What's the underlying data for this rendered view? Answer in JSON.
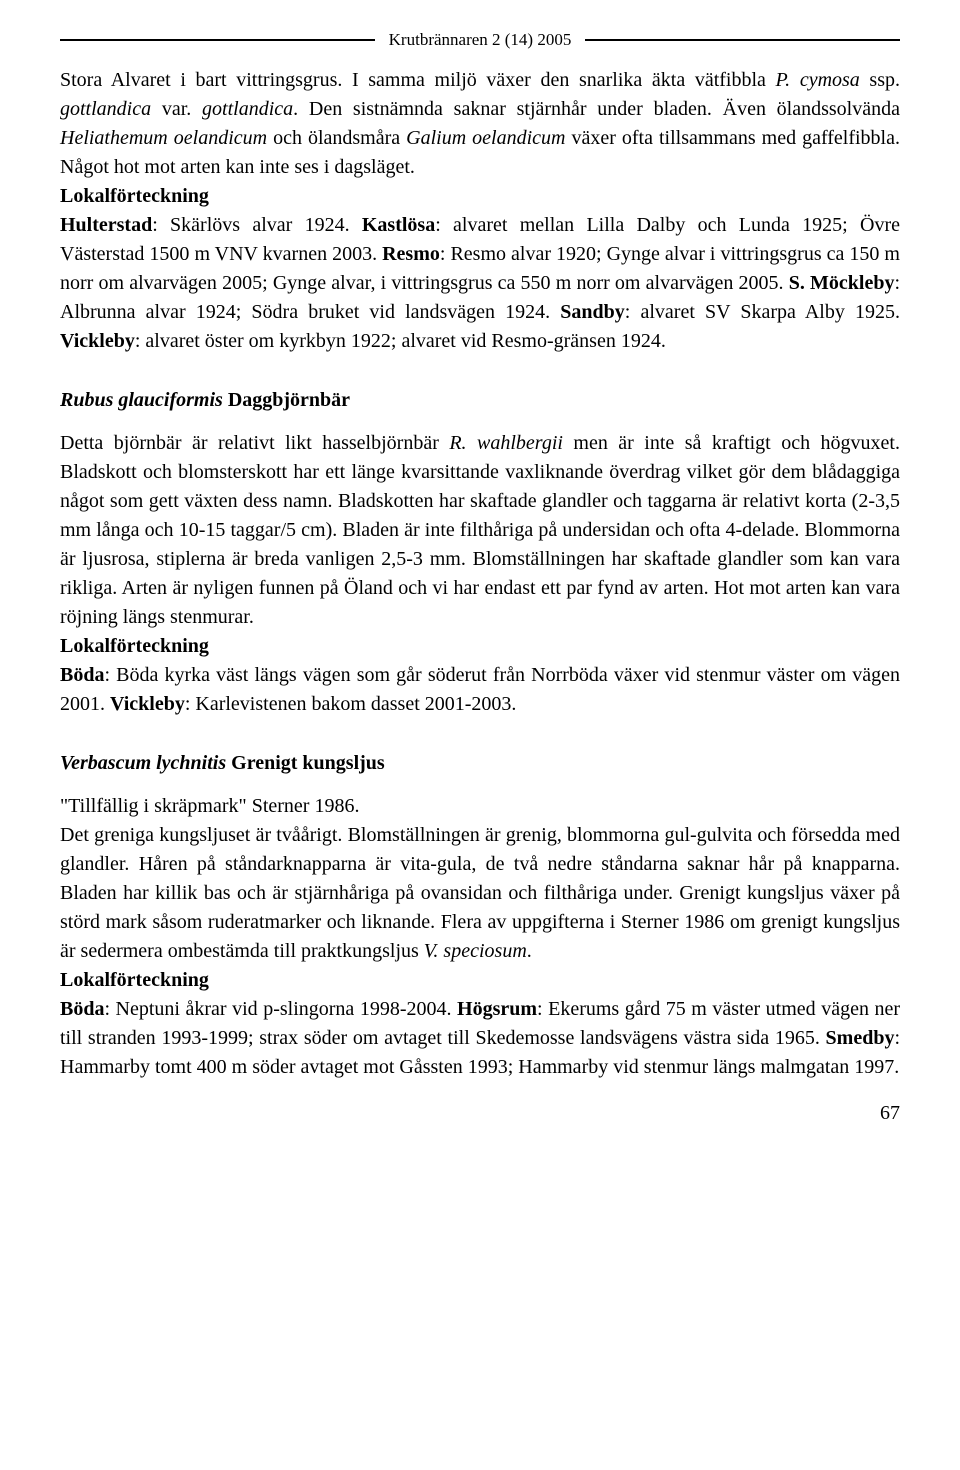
{
  "header": {
    "title": "Krutbrännaren 2 (14) 2005"
  },
  "section1": {
    "p1a": "Stora Alvaret i bart vittringsgrus. I samma miljö växer den snarlika äkta vätfibbla ",
    "p1b": "P. cymosa",
    "p1c": " ssp. ",
    "p1d": "gottlandica",
    "p1e": " var. ",
    "p1f": "gottlandica",
    "p1g": ". Den sistnämnda saknar stjärnhår under bladen. Även ölandssolvända ",
    "p1h": "Heliathemum oelandicum",
    "p1i": " och ölandsmåra ",
    "p1j": "Galium oelandicum",
    "p1k": " växer ofta tillsammans med gaffelfibbla. Något hot mot arten kan inte ses i dagsläget.",
    "lokal": "Lokalförteckning",
    "p2a": "Hulterstad",
    "p2b": ": Skärlövs alvar 1924. ",
    "p2c": "Kastlösa",
    "p2d": ": alvaret mellan Lilla Dalby och Lunda 1925; Övre Västerstad 1500 m VNV kvarnen 2003. ",
    "p2e": "Resmo",
    "p2f": ": Resmo alvar 1920; Gynge alvar i vittringsgrus ca 150 m norr om alvarvägen 2005; Gynge alvar, i vittringsgrus ca 550 m norr om alvarvägen 2005. ",
    "p2g": "S. Möckleby",
    "p2h": ": Albrunna alvar 1924; Södra bruket vid landsvägen 1924. ",
    "p2i": "Sandby",
    "p2j": ": alvaret SV Skarpa Alby 1925. ",
    "p2k": "Vickleby",
    "p2l": ": alvaret öster om kyrkbyn 1922; alvaret vid Resmo-gränsen 1924."
  },
  "section2": {
    "title_i": "Rubus glauciformis",
    "title_r": " Daggbjörnbär",
    "p1a": "Detta björnbär är relativt likt hasselbjörnbär ",
    "p1b": "R. wahlbergii",
    "p1c": " men är inte så kraftigt och högvuxet. Bladskott och blomsterskott har ett länge kvarsittande vaxliknande överdrag vilket gör dem blådaggiga något som gett växten dess namn. Bladskotten har skaftade glandler och taggarna är relativt korta (2-3,5 mm långa och 10-15 taggar/5 cm). Bladen är inte filthåriga på undersidan och ofta 4-delade. Blommorna är ljusrosa, stiplerna är breda vanligen 2,5-3 mm. Blomställningen har skaftade glandler som kan vara rikliga. Arten är nyligen funnen på Öland och vi har endast ett par fynd av arten. Hot mot arten kan vara röjning längs stenmurar.",
    "lokal": "Lokalförteckning",
    "p2a": "Böda",
    "p2b": ": Böda kyrka väst längs vägen som går söderut från Norrböda växer vid stenmur väster om vägen 2001. ",
    "p2c": "Vickleby",
    "p2d": ": Karlevistenen bakom dasset 2001-2003."
  },
  "section3": {
    "title_i": "Verbascum lychnitis",
    "title_r": " Grenigt kungsljus",
    "quote": "\"Tillfällig i skräpmark\" Sterner 1986.",
    "p1a": "Det greniga kungsljuset är tvåårigt. Blomställningen är grenig, blommorna gul-gulvita och försedda med glandler. Håren på ståndarknapparna är vita-gula, de två nedre ståndarna saknar hår på knapparna. Bladen har killik bas och är stjärnhåriga på ovansidan och filthåriga under. Grenigt kungsljus växer på störd mark såsom ruderatmarker och liknande. Flera av uppgifterna i Sterner 1986 om grenigt kungsljus är sedermera ombestämda till praktkungsljus ",
    "p1b": "V. speciosum",
    "p1c": ".",
    "lokal": "Lokalförteckning",
    "p2a": "Böda",
    "p2b": ": Neptuni åkrar vid p-slingorna 1998-2004. ",
    "p2c": "Högsrum",
    "p2d": ": Ekerums gård 75 m väster utmed vägen ner till stranden 1993-1999; strax söder om avtaget till Skedemosse landsvägens västra sida 1965. ",
    "p2e": "Smedby",
    "p2f": ": Hammarby tomt 400 m söder avtaget mot Gåssten 1993; Hammarby vid stenmur längs malmgatan 1997."
  },
  "page_number": "67"
}
